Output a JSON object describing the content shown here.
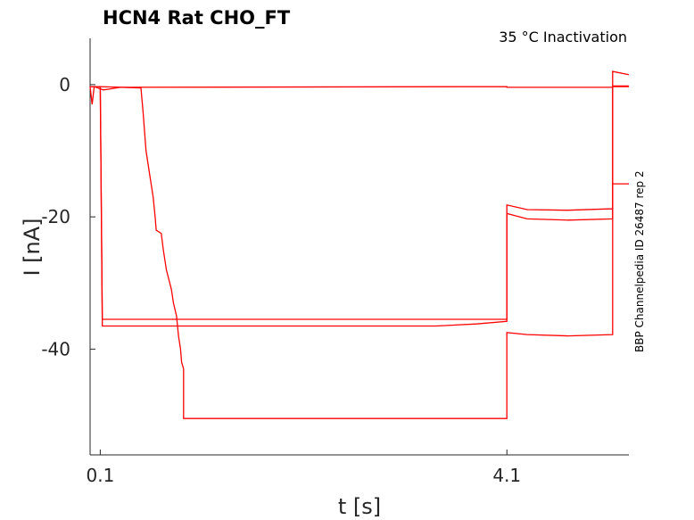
{
  "chart_data": {
    "type": "line",
    "title": "HCN4  Rat  CHO_FT",
    "subtitle": "35 °C  Inactivation",
    "side_label": "BBP Channelpedia ID 26487 rep 2",
    "xlabel": "t [s]",
    "ylabel": "I [nA]",
    "xlim": [
      0.0,
      5.3
    ],
    "ylim": [
      -56,
      7
    ],
    "x_ticks": [
      {
        "value": 0.1,
        "label": "0.1"
      },
      {
        "value": 4.1,
        "label": "4.1"
      }
    ],
    "y_ticks": [
      {
        "value": 0,
        "label": "0"
      },
      {
        "value": -20,
        "label": "-20"
      },
      {
        "value": -40,
        "label": "-40"
      }
    ],
    "grid": false,
    "colors": {
      "trace": "#ff0000",
      "axis": "#262626"
    },
    "series": [
      {
        "points": [
          [
            0.0,
            -0.3
          ],
          [
            0.1,
            -0.3
          ],
          [
            0.12,
            -35.5
          ],
          [
            4.1,
            -35.5
          ],
          [
            4.1,
            -18.2
          ],
          [
            4.3,
            -18.9
          ],
          [
            4.7,
            -19.0
          ],
          [
            5.1,
            -18.8
          ],
          [
            5.14,
            -18.8
          ],
          [
            5.14,
            -0.3
          ],
          [
            5.3,
            -0.3
          ]
        ]
      },
      {
        "points": [
          [
            0.0,
            -0.3
          ],
          [
            0.1,
            -0.3
          ],
          [
            0.12,
            -36.5
          ],
          [
            3.4,
            -36.5
          ],
          [
            3.8,
            -36.2
          ],
          [
            4.1,
            -35.8
          ],
          [
            4.1,
            -19.5
          ],
          [
            4.3,
            -20.3
          ],
          [
            4.7,
            -20.5
          ],
          [
            5.14,
            -20.3
          ],
          [
            5.14,
            -15.0
          ],
          [
            5.3,
            -15.0
          ]
        ]
      },
      {
        "points": [
          [
            0.0,
            -0.3
          ],
          [
            0.1,
            -0.3
          ],
          [
            0.5,
            -0.5
          ],
          [
            0.52,
            -4.0
          ],
          [
            0.55,
            -10.0
          ],
          [
            0.6,
            -15.0
          ],
          [
            0.62,
            -17.0
          ],
          [
            0.64,
            -20.0
          ],
          [
            0.65,
            -22.0
          ],
          [
            0.7,
            -22.5
          ],
          [
            0.72,
            -25.0
          ],
          [
            0.75,
            -28.0
          ],
          [
            0.8,
            -31.0
          ],
          [
            0.82,
            -33.0
          ],
          [
            0.85,
            -35.0
          ],
          [
            0.87,
            -38.0
          ],
          [
            0.89,
            -40.0
          ],
          [
            0.9,
            -42.0
          ],
          [
            0.92,
            -43.0
          ],
          [
            0.92,
            -50.5
          ],
          [
            4.1,
            -50.5
          ],
          [
            4.1,
            -37.5
          ],
          [
            4.3,
            -37.8
          ],
          [
            4.7,
            -38.0
          ],
          [
            5.14,
            -37.8
          ],
          [
            5.14,
            2.0
          ],
          [
            5.3,
            1.5
          ]
        ]
      },
      {
        "points": [
          [
            0.0,
            -0.3
          ],
          [
            0.02,
            -3.0
          ],
          [
            0.04,
            -0.3
          ],
          [
            0.13,
            -0.8
          ],
          [
            0.3,
            -0.4
          ],
          [
            4.1,
            -0.3
          ],
          [
            4.1,
            -0.4
          ],
          [
            5.14,
            -0.4
          ],
          [
            5.14,
            -0.2
          ],
          [
            5.3,
            -0.2
          ]
        ]
      }
    ]
  }
}
